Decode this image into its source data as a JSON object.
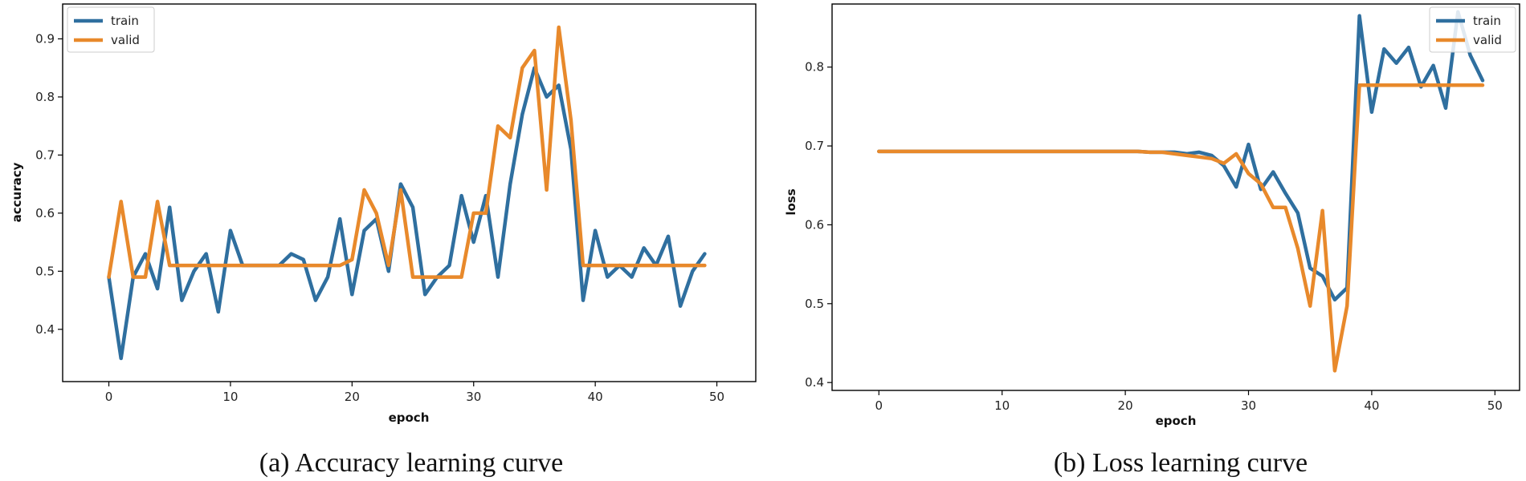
{
  "chart_data": [
    {
      "type": "line",
      "caption": "(a) Accuracy learning curve",
      "xlabel": "epoch",
      "ylabel": "accuracy",
      "xlim": [
        -3.8,
        53.2
      ],
      "ylim": [
        0.31,
        0.96
      ],
      "xticks": [
        0,
        10,
        20,
        30,
        40,
        50
      ],
      "yticks": [
        0.4,
        0.5,
        0.6,
        0.7,
        0.8,
        0.9
      ],
      "ytick_labels": [
        "0.4",
        "0.5",
        "0.6",
        "0.7",
        "0.8",
        "0.9"
      ],
      "legend_position": "top-left",
      "x": [
        0,
        1,
        2,
        3,
        4,
        5,
        6,
        7,
        8,
        9,
        10,
        11,
        12,
        13,
        14,
        15,
        16,
        17,
        18,
        19,
        20,
        21,
        22,
        23,
        24,
        25,
        26,
        27,
        28,
        29,
        30,
        31,
        32,
        33,
        34,
        35,
        36,
        37,
        38,
        39,
        40,
        41,
        42,
        43,
        44,
        45,
        46,
        47,
        48,
        49
      ],
      "series": [
        {
          "name": "train",
          "color": "#2f6f9f",
          "values": [
            0.49,
            0.35,
            0.49,
            0.53,
            0.47,
            0.61,
            0.45,
            0.5,
            0.53,
            0.43,
            0.57,
            0.51,
            0.51,
            0.51,
            0.51,
            0.53,
            0.52,
            0.45,
            0.49,
            0.59,
            0.46,
            0.57,
            0.59,
            0.5,
            0.65,
            0.61,
            0.46,
            0.49,
            0.51,
            0.63,
            0.55,
            0.63,
            0.49,
            0.65,
            0.77,
            0.85,
            0.8,
            0.82,
            0.71,
            0.45,
            0.57,
            0.49,
            0.51,
            0.49,
            0.54,
            0.51,
            0.56,
            0.44,
            0.5,
            0.53
          ]
        },
        {
          "name": "valid",
          "color": "#e8892b",
          "values": [
            0.49,
            0.62,
            0.49,
            0.49,
            0.62,
            0.51,
            0.51,
            0.51,
            0.51,
            0.51,
            0.51,
            0.51,
            0.51,
            0.51,
            0.51,
            0.51,
            0.51,
            0.51,
            0.51,
            0.51,
            0.52,
            0.64,
            0.6,
            0.51,
            0.64,
            0.49,
            0.49,
            0.49,
            0.49,
            0.49,
            0.6,
            0.6,
            0.75,
            0.73,
            0.85,
            0.88,
            0.64,
            0.92,
            0.76,
            0.51,
            0.51,
            0.51,
            0.51,
            0.51,
            0.51,
            0.51,
            0.51,
            0.51,
            0.51,
            0.51
          ]
        }
      ]
    },
    {
      "type": "line",
      "caption": "(b) Loss learning curve",
      "xlabel": "epoch",
      "ylabel": "loss",
      "xlim": [
        -3.8,
        52.0
      ],
      "ylim": [
        0.39,
        0.88
      ],
      "xticks": [
        0,
        10,
        20,
        30,
        40,
        50
      ],
      "yticks": [
        0.4,
        0.5,
        0.6,
        0.7,
        0.8
      ],
      "ytick_labels": [
        "0.4",
        "0.5",
        "0.6",
        "0.7",
        "0.8"
      ],
      "legend_position": "top-right",
      "x": [
        0,
        1,
        2,
        3,
        4,
        5,
        6,
        7,
        8,
        9,
        10,
        11,
        12,
        13,
        14,
        15,
        16,
        17,
        18,
        19,
        20,
        21,
        22,
        23,
        24,
        25,
        26,
        27,
        28,
        29,
        30,
        31,
        32,
        33,
        34,
        35,
        36,
        37,
        38,
        39,
        40,
        41,
        42,
        43,
        44,
        45,
        46,
        47,
        48,
        49
      ],
      "series": [
        {
          "name": "train",
          "color": "#2f6f9f",
          "values": [
            0.693,
            0.693,
            0.693,
            0.693,
            0.693,
            0.693,
            0.693,
            0.693,
            0.693,
            0.693,
            0.693,
            0.693,
            0.693,
            0.693,
            0.693,
            0.693,
            0.693,
            0.693,
            0.693,
            0.693,
            0.693,
            0.693,
            0.692,
            0.692,
            0.692,
            0.69,
            0.692,
            0.688,
            0.675,
            0.648,
            0.702,
            0.645,
            0.667,
            0.64,
            0.615,
            0.545,
            0.535,
            0.505,
            0.52,
            0.865,
            0.743,
            0.823,
            0.805,
            0.825,
            0.775,
            0.802,
            0.748,
            0.87,
            0.815,
            0.783
          ]
        },
        {
          "name": "valid",
          "color": "#e8892b",
          "values": [
            0.693,
            0.693,
            0.693,
            0.693,
            0.693,
            0.693,
            0.693,
            0.693,
            0.693,
            0.693,
            0.693,
            0.693,
            0.693,
            0.693,
            0.693,
            0.693,
            0.693,
            0.693,
            0.693,
            0.693,
            0.693,
            0.693,
            0.692,
            0.692,
            0.69,
            0.688,
            0.686,
            0.684,
            0.678,
            0.69,
            0.665,
            0.652,
            0.622,
            0.622,
            0.57,
            0.497,
            0.618,
            0.415,
            0.497,
            0.777,
            0.777,
            0.777,
            0.777,
            0.777,
            0.777,
            0.777,
            0.777,
            0.777,
            0.777,
            0.777
          ]
        }
      ]
    }
  ]
}
